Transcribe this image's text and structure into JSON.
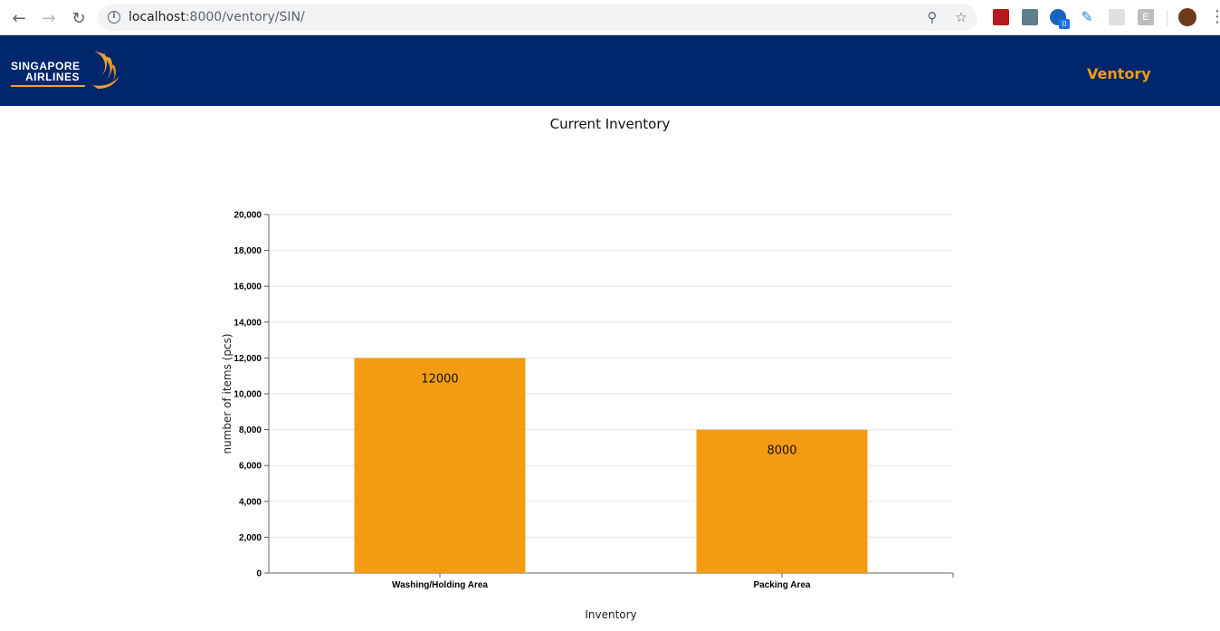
{
  "browser": {
    "url_host": "localhost",
    "url_rest": ":8000/ventory/SIN/",
    "icons": [
      "back-arrow-icon",
      "forward-arrow-icon",
      "reload-icon",
      "info-icon",
      "zoom-icon",
      "star-icon",
      "menu-dots-icon"
    ],
    "extension_badge": "0",
    "extension_e": "E"
  },
  "header": {
    "logo_line1": "SINGAPORE",
    "logo_line2": "AIRLINES",
    "nav_label": "Ventory",
    "bg_color": "#00266b",
    "accent_color": "#f39c12"
  },
  "chart_data": {
    "type": "bar",
    "title": "Current Inventory",
    "xlabel": "Inventory",
    "ylabel": "number of items (pcs)",
    "categories": [
      "Washing/Holding Area",
      "Packing Area"
    ],
    "values": [
      12000,
      8000
    ],
    "data_labels": [
      "12000",
      "8000"
    ],
    "ylim": [
      0,
      20000
    ],
    "yticks": [
      0,
      2000,
      4000,
      6000,
      8000,
      10000,
      12000,
      14000,
      16000,
      18000,
      20000
    ],
    "ytick_labels": [
      "0",
      "2,000",
      "4,000",
      "6,000",
      "8,000",
      "10,000",
      "12,000",
      "14,000",
      "16,000",
      "18,000",
      "20,000"
    ],
    "grid": true,
    "bar_color": "#f39c12"
  }
}
